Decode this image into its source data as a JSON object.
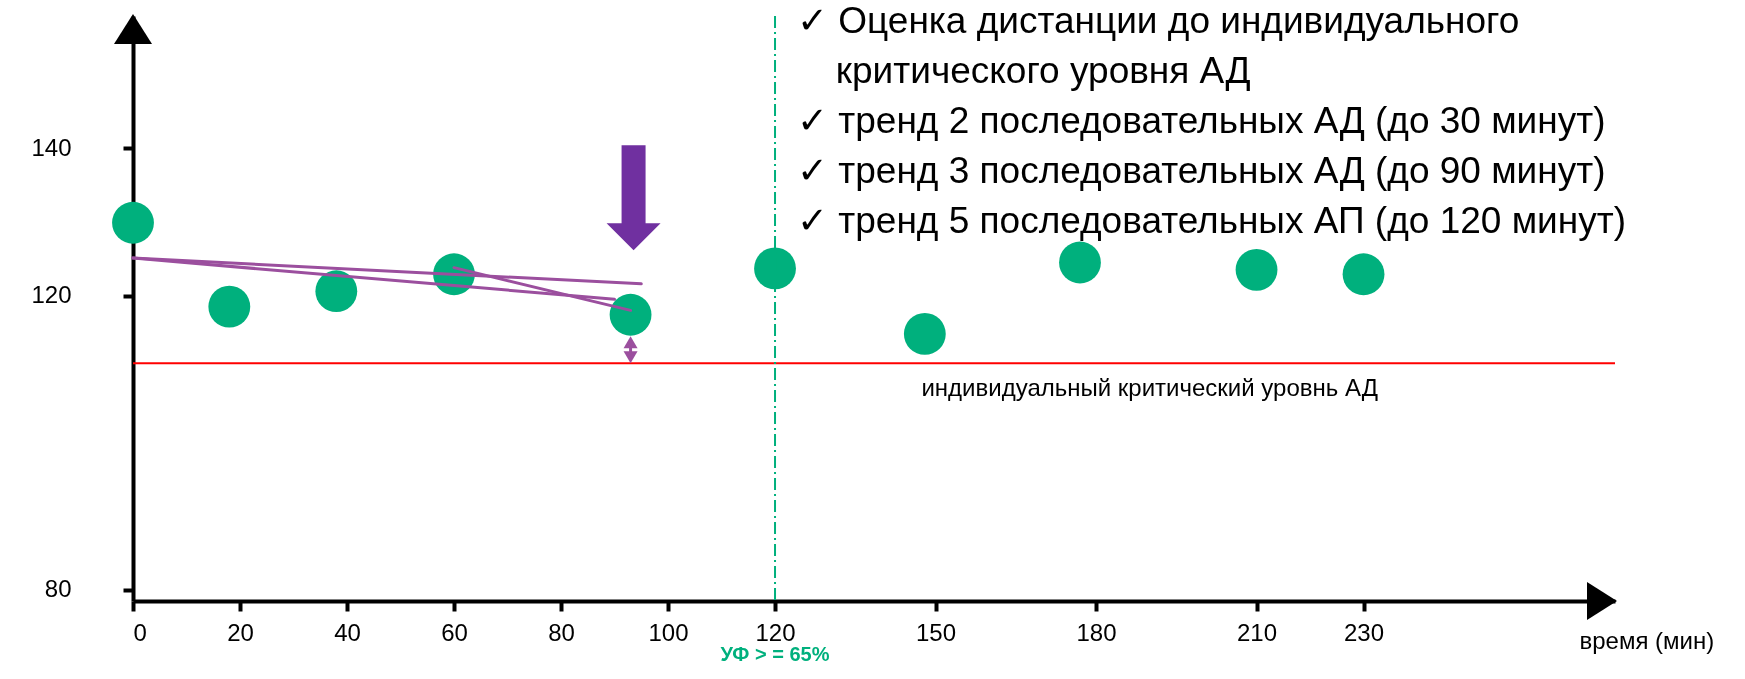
{
  "chart_data": {
    "type": "scatter",
    "xlabel": "время (мин)",
    "xlim": [
      0,
      277
    ],
    "xticks": [
      0,
      20,
      40,
      60,
      80,
      100,
      120,
      150,
      180,
      210,
      230
    ],
    "ylim": [
      78.5,
      158
    ],
    "yticks": [
      80,
      120,
      140
    ],
    "grid": false,
    "series": [
      {
        "color": "#00b07d",
        "marker": "circle",
        "x": [
          0,
          18,
          38,
          60,
          93,
          120,
          148,
          177,
          210,
          230
        ],
        "values": [
          129.9,
          118.5,
          120.6,
          122.9,
          117.4,
          123.7,
          114.8,
          124.5,
          123.5,
          122.9
        ]
      },
      {
        "type": "line",
        "color": "#9b4f9e",
        "x": [
          0,
          95
        ],
        "values": [
          125.1,
          121.6
        ]
      },
      {
        "type": "line",
        "color": "#9b4f9e",
        "x": [
          0,
          90
        ],
        "values": [
          125.1,
          119.5
        ]
      },
      {
        "type": "line",
        "color": "#9b4f9e",
        "x": [
          60,
          93
        ],
        "values": [
          123.8,
          118
        ]
      }
    ],
    "ref_lines": [
      {
        "axis": "y",
        "value": 110.8,
        "label": "индивидуальный критический уровнь АД",
        "color": "#ff0000",
        "line_style": "solid"
      },
      {
        "axis": "x",
        "value": 120,
        "color": "#00b07d",
        "line_style": "dashed"
      }
    ],
    "annotations": [
      "✓ Оценка дистанции до индивидуального критического уровня АД",
      "✓ тренд 2 последовательных АД (до 30 минут)",
      "✓ тренд 3 последовательных АД (до 90 минут)",
      "✓ тренд 5 последовательных АП (до 120 минут)",
      "УФ  > =  65%"
    ]
  }
}
